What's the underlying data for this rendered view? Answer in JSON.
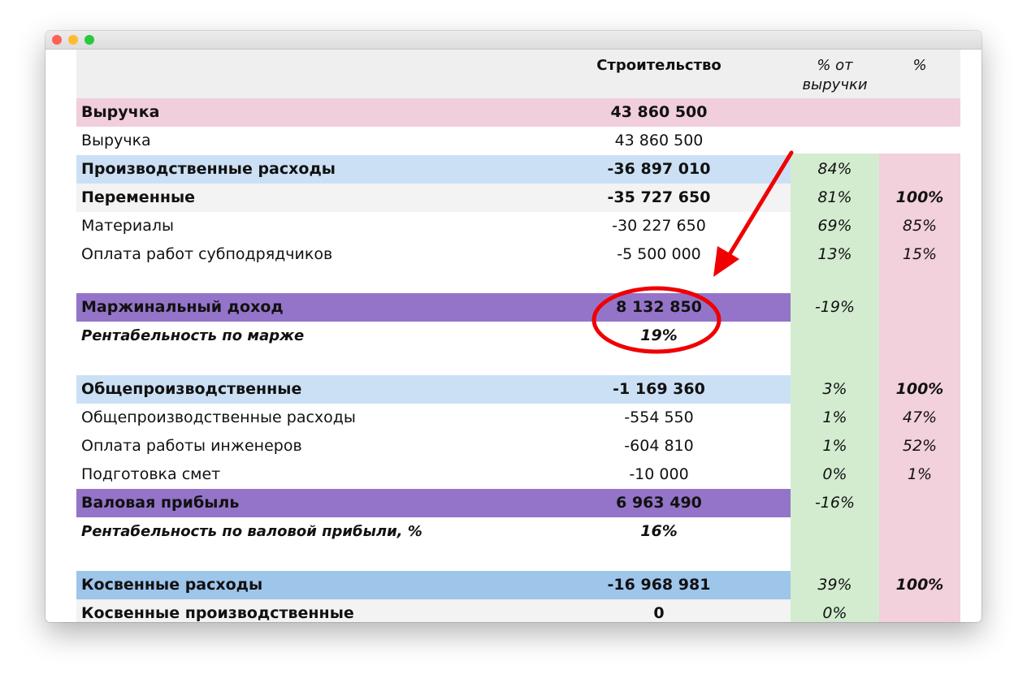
{
  "header": {
    "col_value": "Строительство",
    "col_pct_revenue": "% от выручки",
    "col_pct": "%"
  },
  "colors": {
    "header_bg": "#efefef",
    "revenue_row": "#f1cedc",
    "section_row": "#cbe0f4",
    "subsection_row": "#f3f3f3",
    "margin_row": "#9474c8",
    "indirect_row": "#9ec5ea",
    "pct_revenue_col": "#d3ecd0",
    "pct_col": "#f2d0dc",
    "annotation": "#f00000"
  },
  "rows": [
    {
      "label": "Выручка",
      "value": "43 860 500",
      "pct_revenue": "",
      "pct": ""
    },
    {
      "label": "Выручка",
      "value": "43 860 500",
      "pct_revenue": "",
      "pct": ""
    },
    {
      "label": "Производственные расходы",
      "value": "-36 897 010",
      "pct_revenue": "84%",
      "pct": ""
    },
    {
      "label": "Переменные",
      "value": "-35 727 650",
      "pct_revenue": "81%",
      "pct": "100%"
    },
    {
      "label": "Материалы",
      "value": "-30 227 650",
      "pct_revenue": "69%",
      "pct": "85%"
    },
    {
      "label": "Оплата работ субподрядчиков",
      "value": "-5 500 000",
      "pct_revenue": "13%",
      "pct": "15%"
    },
    {
      "label": "Маржинальный доход",
      "value": "8 132 850",
      "pct_revenue": "-19%",
      "pct": ""
    },
    {
      "label": "Рентабельность по марже",
      "value": "19%",
      "pct_revenue": "",
      "pct": ""
    },
    {
      "label": "Общепроизводственные",
      "value": "-1 169 360",
      "pct_revenue": "3%",
      "pct": "100%"
    },
    {
      "label": "Общепроизводственные расходы",
      "value": "-554 550",
      "pct_revenue": "1%",
      "pct": "47%"
    },
    {
      "label": "Оплата работы инженеров",
      "value": "-604 810",
      "pct_revenue": "1%",
      "pct": "52%"
    },
    {
      "label": "Подготовка смет",
      "value": "-10 000",
      "pct_revenue": "0%",
      "pct": "1%"
    },
    {
      "label": "Валовая прибыль",
      "value": "6 963 490",
      "pct_revenue": "-16%",
      "pct": ""
    },
    {
      "label": "Рентабельность по валовой прибыли, %",
      "value": "16%",
      "pct_revenue": "",
      "pct": ""
    },
    {
      "label": "Косвенные расходы",
      "value": "-16 968 981",
      "pct_revenue": "39%",
      "pct": "100%"
    },
    {
      "label": "Косвенные производственные",
      "value": "0",
      "pct_revenue": "0%",
      "pct": ""
    }
  ]
}
